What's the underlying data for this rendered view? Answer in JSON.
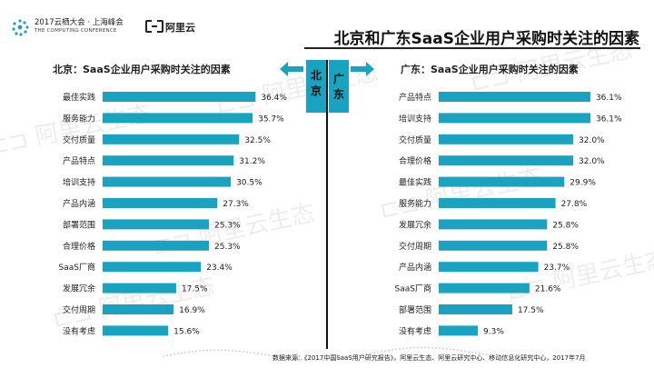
{
  "header": {
    "logo_line1": "2017云栖大会 · 上海峰会",
    "logo_line2": "THE COMPUTING CONFERENCE",
    "brand": "阿里云",
    "title": "北京和广东SaaS企业用户采购时关注的因素"
  },
  "markers": {
    "left_label": "北京",
    "right_label": "广东"
  },
  "colors": {
    "bar": "#1aa3c0",
    "accent": "#1aa3c0",
    "watermark": "#d6d8dc"
  },
  "watermark": {
    "text": "阿里云生态"
  },
  "source": "数据来源：《2017中国SaaS用户研究报告》，阿里云生态、阿里云研究中心、移动信息化研究中心，2017年7月",
  "chart_data": [
    {
      "type": "bar",
      "orientation": "horizontal",
      "title": "北京：SaaS企业用户采购时关注的因素",
      "categories": [
        "最佳实践",
        "服务能力",
        "交付质量",
        "产品特点",
        "培训支持",
        "产品内涵",
        "部署范围",
        "合理价格",
        "SaaS厂商",
        "发展冗余",
        "交付周期",
        "没有考虑"
      ],
      "values": [
        36.4,
        35.7,
        32.5,
        31.2,
        30.5,
        27.3,
        25.3,
        25.3,
        23.4,
        17.5,
        16.9,
        15.6
      ],
      "labels": [
        "36.4%",
        "35.7%",
        "32.5%",
        "31.2%",
        "30.5%",
        "27.3%",
        "25.3%",
        "25.3%",
        "23.4%",
        "17.5%",
        "16.9%",
        "15.6%"
      ],
      "unit": "%",
      "xlim": [
        0,
        40
      ]
    },
    {
      "type": "bar",
      "orientation": "horizontal",
      "title": "广东：SaaS企业用户采购时关注的因素",
      "categories": [
        "产品特点",
        "培训支持",
        "交付质量",
        "合理价格",
        "最佳实践",
        "服务能力",
        "发展冗余",
        "交付周期",
        "产品内涵",
        "SaaS厂商",
        "部署范围",
        "没有考虑"
      ],
      "values": [
        36.1,
        36.1,
        32.0,
        32.0,
        29.9,
        27.8,
        25.8,
        25.8,
        23.7,
        21.6,
        17.5,
        9.3
      ],
      "labels": [
        "36.1%",
        "36.1%",
        "32.0%",
        "32.0%",
        "29.9%",
        "27.8%",
        "25.8%",
        "25.8%",
        "23.7%",
        "21.6%",
        "17.5%",
        "9.3%"
      ],
      "unit": "%",
      "xlim": [
        0,
        40
      ]
    }
  ]
}
